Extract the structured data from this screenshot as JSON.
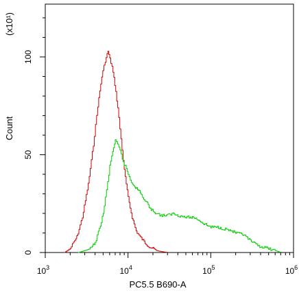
{
  "chart_data": {
    "type": "line",
    "title": "",
    "xlabel": "PC5.5 B690-A",
    "ylabel": "Count",
    "y_multiplier_label": "(x10¹)",
    "x_scale": "log",
    "xlim": [
      1000,
      1000000
    ],
    "ylim": [
      0,
      127
    ],
    "x_ticks": [
      {
        "value": 1000,
        "base": "10",
        "exp": "3"
      },
      {
        "value": 10000,
        "base": "10",
        "exp": "4"
      },
      {
        "value": 100000,
        "base": "10",
        "exp": "5"
      },
      {
        "value": 1000000,
        "base": "10",
        "exp": "6"
      }
    ],
    "y_ticks": [
      {
        "value": 0,
        "label": "0"
      },
      {
        "value": 50,
        "label": "50"
      },
      {
        "value": 100,
        "label": "100"
      }
    ],
    "grid": false,
    "series": [
      {
        "color": "#cc0000",
        "x": [
          1700,
          2000,
          2400,
          2800,
          3300,
          3800,
          4300,
          4800,
          5300,
          5700,
          6000,
          6400,
          6900,
          7500,
          8200,
          9000,
          10000,
          11200,
          12500,
          14000,
          16000,
          18000,
          20000,
          22000,
          25000,
          30000
        ],
        "y": [
          0,
          2,
          8,
          18,
          35,
          55,
          75,
          90,
          98,
          103,
          99,
          95,
          86,
          74,
          58,
          42,
          28,
          18,
          11,
          8,
          5,
          3,
          2,
          1,
          0.5,
          0
        ]
      },
      {
        "color": "#00cc00",
        "x": [
          2500,
          3000,
          3500,
          4000,
          4500,
          5000,
          5500,
          6000,
          6500,
          7000,
          7500,
          8000,
          8500,
          9000,
          9500,
          10000,
          11000,
          12000,
          13000,
          14000,
          15000,
          17000,
          19000,
          22000,
          25000,
          30000,
          35000,
          40000,
          50000,
          60000,
          70000,
          80000,
          100000,
          120000,
          150000,
          180000,
          200000,
          250000,
          300000,
          350000,
          400000,
          500000,
          600000,
          700000
        ],
        "y": [
          0,
          1,
          2,
          5,
          12,
          20,
          32,
          44,
          52,
          57,
          55,
          52,
          48,
          45,
          43,
          40,
          36,
          34,
          32,
          31,
          28,
          25,
          22,
          20,
          19,
          19,
          20,
          19,
          18,
          18,
          17,
          15,
          13,
          13,
          12,
          11,
          10,
          9,
          6,
          4,
          3,
          2,
          1,
          0
        ]
      }
    ]
  }
}
